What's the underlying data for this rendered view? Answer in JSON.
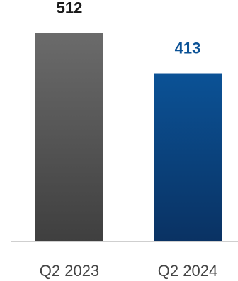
{
  "chart_data": {
    "type": "bar",
    "categories": [
      "Q2 2023",
      "Q2 2024"
    ],
    "values": [
      512,
      413
    ],
    "value_labels": [
      "512",
      "413"
    ],
    "ylim": [
      0,
      560
    ],
    "grid": false,
    "colors": {
      "bars_top": [
        "#6b6b6b",
        "#0b5296"
      ],
      "bars_bottom": [
        "#3f3f3f",
        "#0a3263"
      ],
      "value_labels": [
        "#1a1a1a",
        "#0b5296"
      ],
      "axis": "#bfbfbf"
    }
  }
}
